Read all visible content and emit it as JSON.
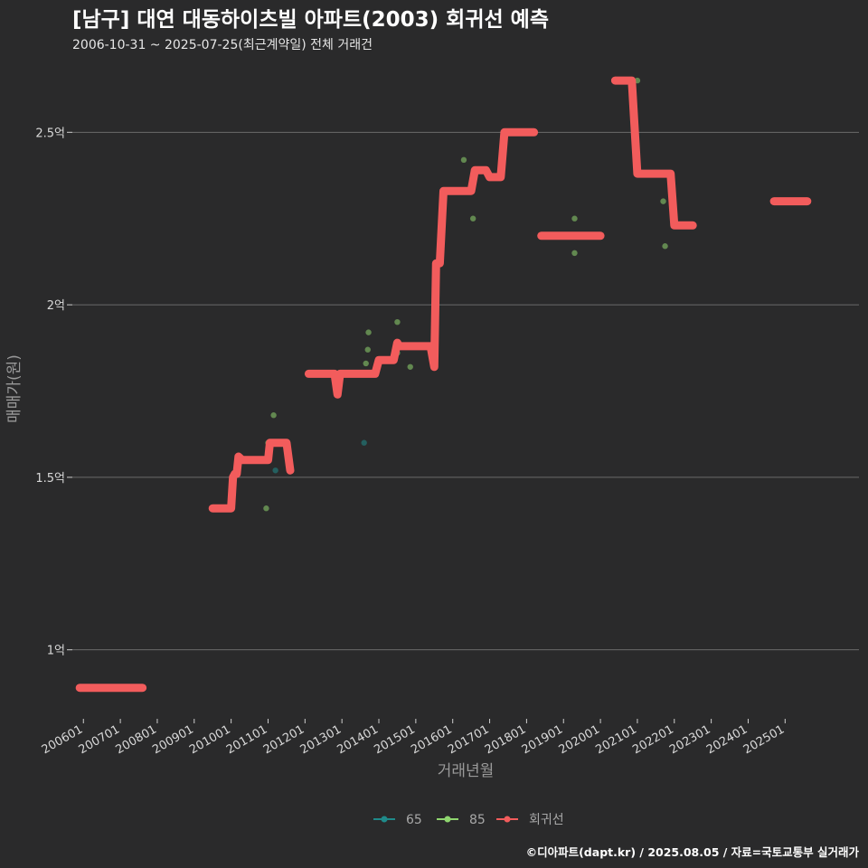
{
  "chart_data": {
    "type": "line",
    "title": "[남구] 대연 대동하이츠빌 아파트(2003) 회귀선 예측",
    "subtitle": "2006-10-31 ~ 2025-07-25(최근계약일) 전체 거래건",
    "xlabel": "거래년월",
    "ylabel": "매매가(원)",
    "caption": "©디아파트(dapt.kr) / 2025.08.05 / 자료=국토교통부 실거래가",
    "xlim": [
      2005.7,
      2027.0
    ],
    "ylim": [
      0.8,
      2.7
    ],
    "x_ticks": [
      {
        "label": "200601",
        "x": 2006
      },
      {
        "label": "200701",
        "x": 2007
      },
      {
        "label": "200801",
        "x": 2008
      },
      {
        "label": "200901",
        "x": 2009
      },
      {
        "label": "201001",
        "x": 2010
      },
      {
        "label": "201101",
        "x": 2011
      },
      {
        "label": "201201",
        "x": 2012
      },
      {
        "label": "201301",
        "x": 2013
      },
      {
        "label": "201401",
        "x": 2014
      },
      {
        "label": "201501",
        "x": 2015
      },
      {
        "label": "201601",
        "x": 2016
      },
      {
        "label": "201701",
        "x": 2017
      },
      {
        "label": "201801",
        "x": 2018
      },
      {
        "label": "201901",
        "x": 2019
      },
      {
        "label": "202001",
        "x": 2020
      },
      {
        "label": "202101",
        "x": 2021
      },
      {
        "label": "202201",
        "x": 2022
      },
      {
        "label": "202301",
        "x": 2023
      },
      {
        "label": "202401",
        "x": 2024
      },
      {
        "label": "202501",
        "x": 2025
      }
    ],
    "y_ticks": [
      {
        "label": "1억",
        "value": 1.0
      },
      {
        "label": "1.5억",
        "value": 1.5
      },
      {
        "label": "2억",
        "value": 2.0
      },
      {
        "label": "2.5억",
        "value": 2.5
      }
    ],
    "legend": [
      {
        "name": "65",
        "color": "#1f8a8a"
      },
      {
        "name": "85",
        "color": "#8fd66f"
      },
      {
        "name": "회귀선",
        "color": "#f25c5c"
      }
    ],
    "series": [
      {
        "name": "65",
        "type": "scatter",
        "color": "#1f8a8a",
        "points": [
          [
            2011.2,
            1.52
          ],
          [
            2013.6,
            1.6
          ]
        ]
      },
      {
        "name": "85",
        "type": "scatter",
        "color": "#8fd66f",
        "points": [
          [
            2010.95,
            1.41
          ],
          [
            2011.0,
            1.6
          ],
          [
            2011.15,
            1.68
          ],
          [
            2013.65,
            1.83
          ],
          [
            2013.7,
            1.87
          ],
          [
            2013.72,
            1.92
          ],
          [
            2014.5,
            1.86
          ],
          [
            2014.5,
            1.95
          ],
          [
            2014.85,
            1.82
          ],
          [
            2016.3,
            2.42
          ],
          [
            2016.55,
            2.25
          ],
          [
            2019.3,
            2.15
          ],
          [
            2019.3,
            2.25
          ],
          [
            2021.0,
            2.65
          ],
          [
            2021.7,
            2.3
          ],
          [
            2021.75,
            2.17
          ]
        ]
      },
      {
        "name": "회귀선",
        "type": "line",
        "color": "#f25c5c",
        "segments": [
          [
            [
              2005.9,
              0.89
            ],
            [
              2007.6,
              0.89
            ]
          ],
          [
            [
              2009.5,
              1.41
            ],
            [
              2010.0,
              1.41
            ],
            [
              2010.05,
              1.5
            ],
            [
              2010.1,
              1.51
            ],
            [
              2010.15,
              1.51
            ],
            [
              2010.2,
              1.56
            ],
            [
              2010.3,
              1.55
            ],
            [
              2011.0,
              1.55
            ],
            [
              2011.05,
              1.6
            ],
            [
              2011.5,
              1.6
            ],
            [
              2011.6,
              1.52
            ]
          ],
          [
            [
              2012.1,
              1.8
            ],
            [
              2012.8,
              1.8
            ],
            [
              2012.88,
              1.74
            ],
            [
              2012.95,
              1.8
            ],
            [
              2013.9,
              1.8
            ],
            [
              2014.0,
              1.84
            ],
            [
              2014.4,
              1.84
            ],
            [
              2014.5,
              1.89
            ],
            [
              2014.55,
              1.88
            ],
            [
              2015.4,
              1.88
            ],
            [
              2015.5,
              1.82
            ],
            [
              2015.55,
              2.12
            ],
            [
              2015.65,
              2.12
            ],
            [
              2015.75,
              2.33
            ],
            [
              2016.5,
              2.33
            ],
            [
              2016.6,
              2.39
            ],
            [
              2016.9,
              2.39
            ],
            [
              2017.0,
              2.37
            ],
            [
              2017.3,
              2.37
            ],
            [
              2017.4,
              2.5
            ],
            [
              2018.2,
              2.5
            ]
          ],
          [
            [
              2018.4,
              2.2
            ],
            [
              2020.0,
              2.2
            ]
          ],
          [
            [
              2020.4,
              2.65
            ],
            [
              2020.85,
              2.65
            ],
            [
              2021.0,
              2.38
            ],
            [
              2021.9,
              2.38
            ],
            [
              2022.0,
              2.23
            ],
            [
              2022.5,
              2.23
            ]
          ],
          [
            [
              2024.7,
              2.3
            ],
            [
              2025.6,
              2.3
            ]
          ]
        ]
      }
    ]
  }
}
